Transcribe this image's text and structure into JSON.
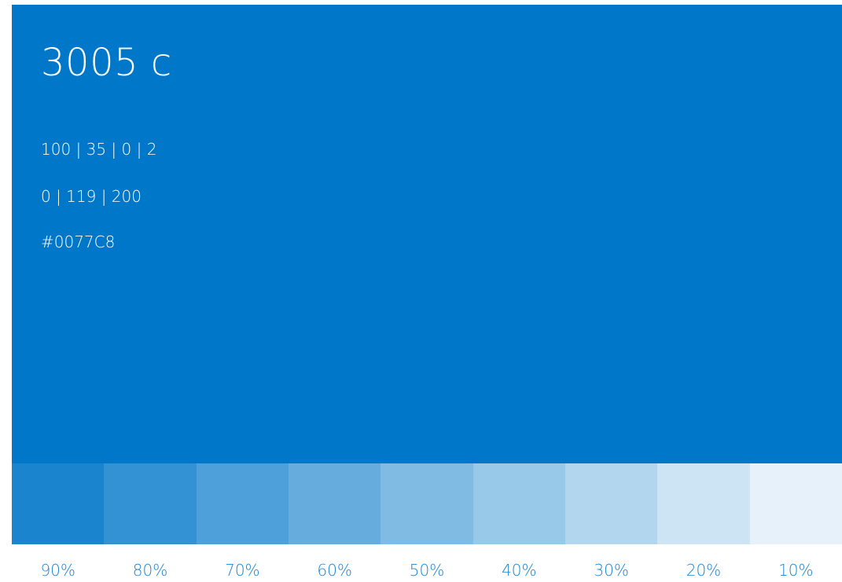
{
  "swatch": {
    "name": "3005 c",
    "cmyk": "100 | 35 | 0 | 2",
    "rgb": "0 | 119 | 200",
    "hex": "#0077C8",
    "base_color": "#0077C8",
    "text_color": "#FFFFFF"
  },
  "tints": [
    {
      "label": "90%",
      "color": "#1A85CE"
    },
    {
      "label": "80%",
      "color": "#3392D3"
    },
    {
      "label": "70%",
      "color": "#4DA0D9"
    },
    {
      "label": "60%",
      "color": "#66ADDE"
    },
    {
      "label": "50%",
      "color": "#80BBE3"
    },
    {
      "label": "40%",
      "color": "#99C9E9"
    },
    {
      "label": "30%",
      "color": "#B3D6EF"
    },
    {
      "label": "20%",
      "color": "#CCE4F4"
    },
    {
      "label": "10%",
      "color": "#E6F1FA"
    }
  ],
  "label_color": "#1A84D1"
}
